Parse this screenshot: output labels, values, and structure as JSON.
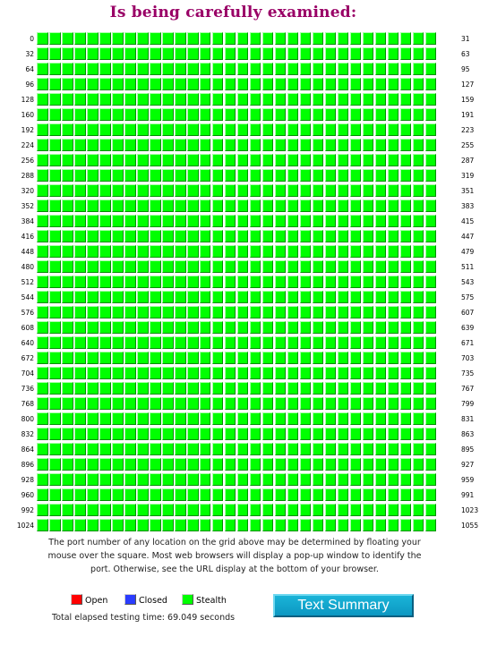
{
  "title": "Is being carefully examined:",
  "grid": {
    "rows": [
      {
        "start": "0",
        "end": "31"
      },
      {
        "start": "32",
        "end": "63"
      },
      {
        "start": "64",
        "end": "95"
      },
      {
        "start": "96",
        "end": "127"
      },
      {
        "start": "128",
        "end": "159"
      },
      {
        "start": "160",
        "end": "191"
      },
      {
        "start": "192",
        "end": "223"
      },
      {
        "start": "224",
        "end": "255"
      },
      {
        "start": "256",
        "end": "287"
      },
      {
        "start": "288",
        "end": "319"
      },
      {
        "start": "320",
        "end": "351"
      },
      {
        "start": "352",
        "end": "383"
      },
      {
        "start": "384",
        "end": "415"
      },
      {
        "start": "416",
        "end": "447"
      },
      {
        "start": "448",
        "end": "479"
      },
      {
        "start": "480",
        "end": "511"
      },
      {
        "start": "512",
        "end": "543"
      },
      {
        "start": "544",
        "end": "575"
      },
      {
        "start": "576",
        "end": "607"
      },
      {
        "start": "608",
        "end": "639"
      },
      {
        "start": "640",
        "end": "671"
      },
      {
        "start": "672",
        "end": "703"
      },
      {
        "start": "704",
        "end": "735"
      },
      {
        "start": "736",
        "end": "767"
      },
      {
        "start": "768",
        "end": "799"
      },
      {
        "start": "800",
        "end": "831"
      },
      {
        "start": "832",
        "end": "863"
      },
      {
        "start": "864",
        "end": "895"
      },
      {
        "start": "896",
        "end": "927"
      },
      {
        "start": "928",
        "end": "959"
      },
      {
        "start": "960",
        "end": "991"
      },
      {
        "start": "992",
        "end": "1023"
      },
      {
        "start": "1024",
        "end": "1055"
      }
    ],
    "status": "stealth"
  },
  "description": "The port number of any location on the grid above may be determined by floating your mouse over the square. Most web browsers will display a pop-up window to identify the port. Otherwise, see the URL display at the bottom of your browser.",
  "legend": {
    "open": "Open",
    "closed": "Closed",
    "stealth": "Stealth"
  },
  "elapsed": "Total elapsed testing time: 69.049 seconds",
  "button": {
    "label": "Text Summary"
  },
  "colors": {
    "stealth": "#00ff00",
    "open": "#ff0000",
    "closed": "#2a3cff",
    "title": "#990066",
    "button": "#1aa6cf"
  }
}
